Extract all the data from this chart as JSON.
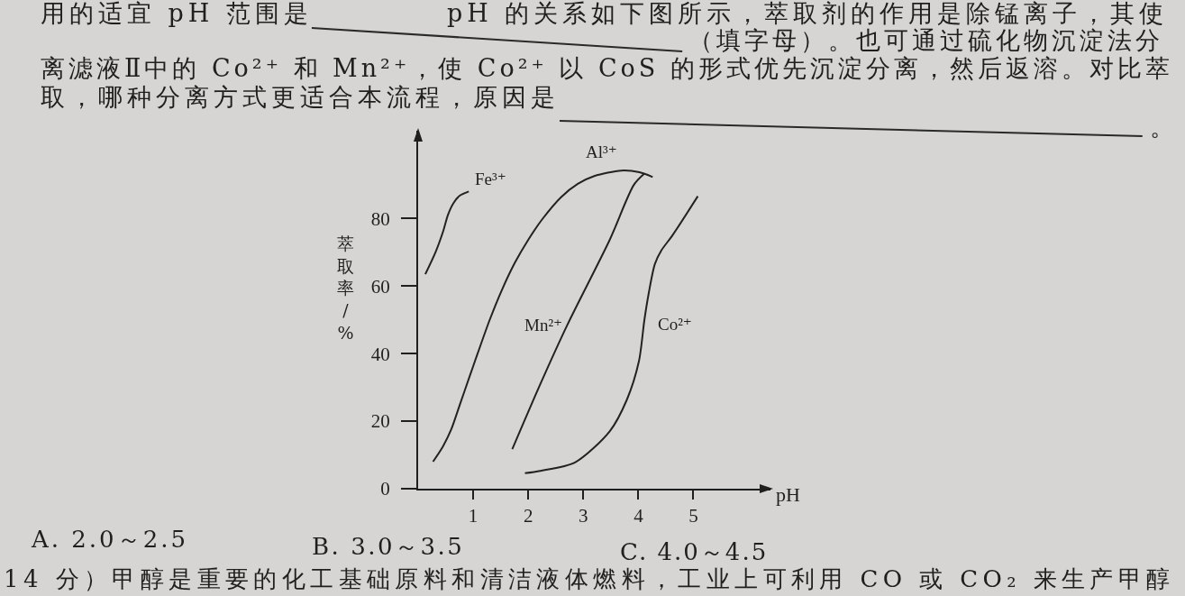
{
  "chart_data": {
    "type": "line",
    "xlabel": "pH",
    "ylabel": "萃取率/%",
    "line_style": "solid",
    "xlim": [
      0,
      6.4
    ],
    "ylim": [
      0,
      106
    ],
    "xticks": [
      1,
      2,
      3,
      4,
      5
    ],
    "yticks": [
      0,
      20,
      40,
      60,
      80
    ],
    "series": [
      {
        "name": "Fe³⁺",
        "color": "#222222",
        "x": [
          0.13,
          0.32,
          0.46,
          0.54,
          0.64,
          0.75,
          0.92
        ],
        "values": [
          63.5,
          70.2,
          76.5,
          81,
          84.5,
          86.7,
          88
        ]
      },
      {
        "name": "Al³⁺",
        "color": "#222222",
        "x": [
          0.27,
          0.45,
          0.6,
          0.76,
          0.93,
          1.08,
          1.3,
          1.52,
          1.76,
          2.0,
          2.25,
          2.6,
          2.9,
          3.2,
          3.69,
          4.02,
          4.26
        ],
        "values": [
          8,
          12.5,
          17.5,
          25,
          33,
          40,
          50,
          58.8,
          67,
          73.7,
          79.7,
          86.4,
          90.3,
          92.6,
          94.2,
          93.7,
          92.3
        ]
      },
      {
        "name": "Mn²⁺",
        "color": "#222222",
        "x": [
          1.71,
          2.22,
          2.71,
          3.48,
          3.92,
          4.11
        ],
        "values": [
          11.7,
          31,
          48.5,
          73.7,
          90,
          93.3
        ]
      },
      {
        "name": "Co²⁺",
        "color": "#222222",
        "x": [
          1.94,
          2.22,
          2.85,
          3.48,
          3.79,
          4.01,
          4.11,
          4.19,
          4.3,
          4.42,
          4.61,
          5.08
        ],
        "values": [
          4.6,
          5.3,
          7.8,
          17,
          26.3,
          37.7,
          50,
          58,
          66.5,
          70.6,
          74.8,
          86.6
        ]
      }
    ],
    "annotations": [
      "用的适宜 pH 范围是",
      "pH 的关系如下图所示，萃取剂的作用是除锰离子，其使",
      "（填字母）。也可通过硫化物沉淀法分",
      "离滤液Ⅱ中的 Co²⁺ 和 Mn²⁺，使 Co²⁺ 以 CoS 的形式优先沉淀分离，然后返溶。对比萃",
      "取，哪种分离方式更适合本流程，原因是",
      "。",
      "A. 2.0～2.5",
      "B. 3.0～3.5",
      "C. 4.0～4.5",
      "14 分）甲醇是重要的化工基础原料和清洁液体燃料，工业上可利用 CO 或 CO₂ 来生产甲醇"
    ]
  }
}
